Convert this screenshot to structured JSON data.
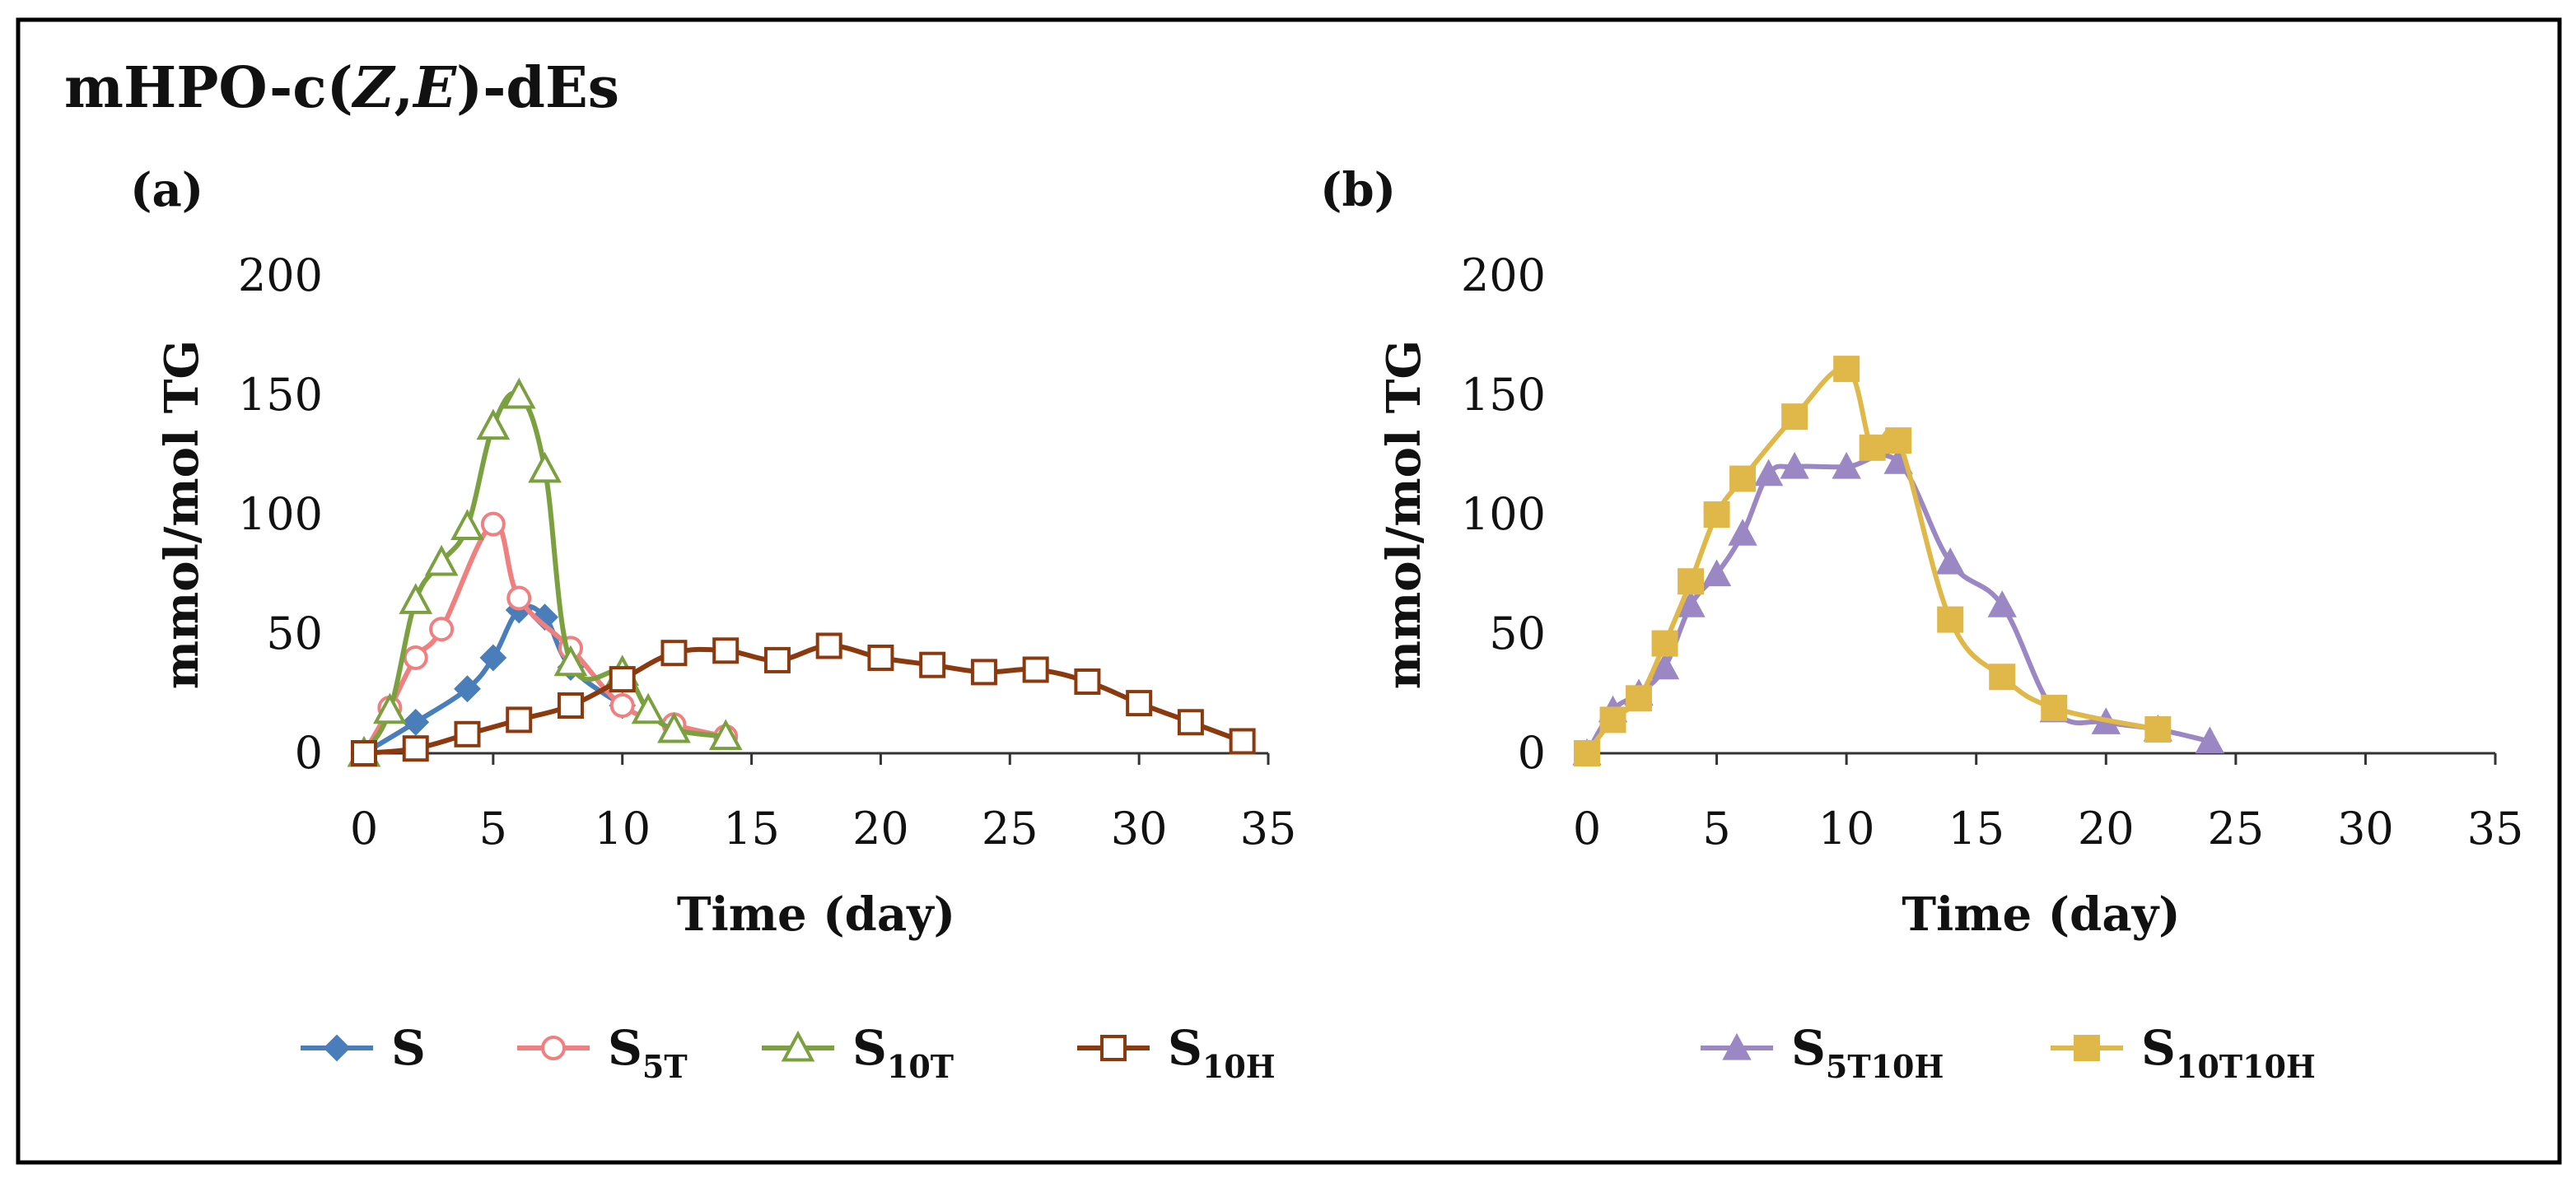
{
  "title": {
    "prefix": "mHPO-c(",
    "z": "Z",
    "comma": ",",
    "e": "E",
    "suffix": ")-dEs"
  },
  "chart_data": [
    {
      "panel": "(a)",
      "type": "line",
      "xlabel": "Time (day)",
      "ylabel": "mmol/mol TG",
      "xlim": [
        0,
        35
      ],
      "ylim": [
        0,
        200
      ],
      "xticks": [
        "0",
        "5",
        "10",
        "15",
        "20",
        "25",
        "30",
        "35"
      ],
      "yticks": [
        "0",
        "50",
        "100",
        "150",
        "200"
      ],
      "grid": false,
      "legend_position": "bottom",
      "series": [
        {
          "name": "S",
          "name_main": "S",
          "name_sub": "",
          "color": "#4a7ebb",
          "marker": "diamond-filled",
          "x": [
            0,
            2,
            4,
            5,
            6,
            7,
            8,
            10
          ],
          "y": [
            0,
            13,
            27,
            40,
            60,
            57,
            36,
            20
          ]
        },
        {
          "name": "S5T",
          "name_main": "S",
          "name_sub": "5T",
          "color": "#f08080",
          "marker": "circle-open",
          "x": [
            0,
            1,
            2,
            3,
            5,
            6,
            8,
            10,
            12,
            14
          ],
          "y": [
            0,
            19,
            40,
            52,
            96,
            65,
            44,
            20,
            12,
            7
          ]
        },
        {
          "name": "S10T",
          "name_main": "S",
          "name_sub": "10T",
          "color": "#7aa03f",
          "marker": "triangle-open",
          "x": [
            0,
            1,
            2,
            3,
            4,
            5,
            6,
            7,
            8,
            10,
            11,
            12,
            14
          ],
          "y": [
            0,
            18,
            64,
            80,
            95,
            137,
            150,
            119,
            38,
            34,
            18,
            10,
            7
          ]
        },
        {
          "name": "S10H",
          "name_main": "S",
          "name_sub": "10H",
          "color": "#8b3a0f",
          "marker": "square-open",
          "x": [
            0,
            2,
            4,
            6,
            8,
            10,
            12,
            14,
            16,
            18,
            20,
            22,
            24,
            26,
            28,
            30,
            32,
            34
          ],
          "y": [
            0,
            2,
            8,
            14,
            20,
            31,
            42,
            43,
            39,
            45,
            40,
            37,
            34,
            35,
            30,
            21,
            13,
            5
          ]
        }
      ]
    },
    {
      "panel": "(b)",
      "type": "line",
      "xlabel": "Time (day)",
      "ylabel": "mmol/mol TG",
      "xlim": [
        0,
        35
      ],
      "ylim": [
        0,
        200
      ],
      "xticks": [
        "0",
        "5",
        "10",
        "15",
        "20",
        "25",
        "30",
        "35"
      ],
      "yticks": [
        "0",
        "50",
        "100",
        "150",
        "200"
      ],
      "grid": false,
      "legend_position": "bottom",
      "series": [
        {
          "name": "S5T10H",
          "name_main": "S",
          "name_sub": "5T10H",
          "color": "#9b87c3",
          "marker": "triangle-filled",
          "x": [
            0,
            1,
            2,
            3,
            4,
            5,
            6,
            7,
            8,
            10,
            12,
            14,
            16,
            18,
            20,
            22,
            24
          ],
          "y": [
            0,
            18,
            25,
            36,
            62,
            75,
            92,
            117,
            120,
            120,
            122,
            80,
            62,
            18,
            13,
            10,
            5
          ]
        },
        {
          "name": "S10T10H",
          "name_main": "S",
          "name_sub": "10T10H",
          "color": "#e0b84a",
          "marker": "square-filled",
          "x": [
            0,
            1,
            2,
            3,
            4,
            5,
            6,
            8,
            10,
            11,
            12,
            14,
            16,
            18,
            22
          ],
          "y": [
            0,
            14,
            23,
            46,
            72,
            100,
            115,
            141,
            161,
            128,
            131,
            56,
            32,
            19,
            10
          ]
        }
      ]
    }
  ]
}
